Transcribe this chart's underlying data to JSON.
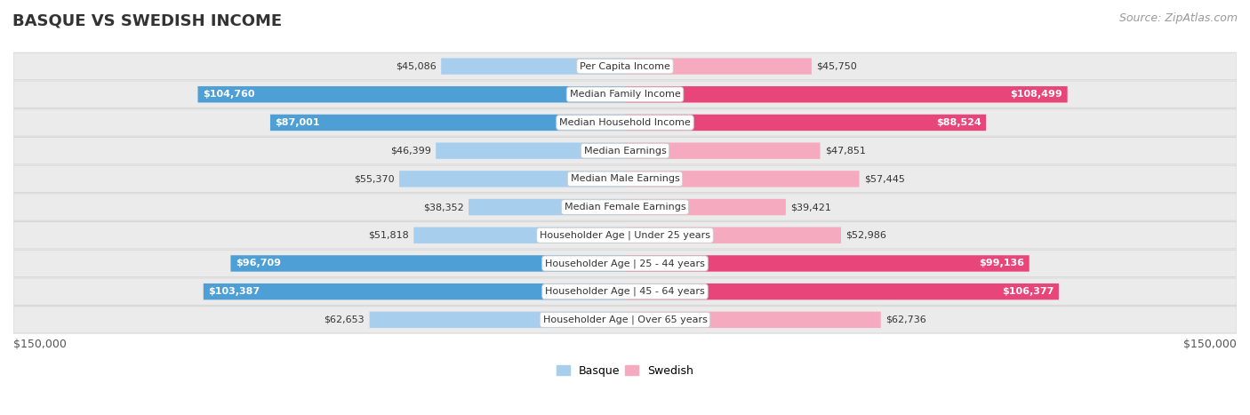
{
  "title": "BASQUE VS SWEDISH INCOME",
  "source": "Source: ZipAtlas.com",
  "categories": [
    "Per Capita Income",
    "Median Family Income",
    "Median Household Income",
    "Median Earnings",
    "Median Male Earnings",
    "Median Female Earnings",
    "Householder Age | Under 25 years",
    "Householder Age | 25 - 44 years",
    "Householder Age | 45 - 64 years",
    "Householder Age | Over 65 years"
  ],
  "basque_values": [
    45086,
    104760,
    87001,
    46399,
    55370,
    38352,
    51818,
    96709,
    103387,
    62653
  ],
  "swedish_values": [
    45750,
    108499,
    88524,
    47851,
    57445,
    39421,
    52986,
    99136,
    106377,
    62736
  ],
  "basque_labels": [
    "$45,086",
    "$104,760",
    "$87,001",
    "$46,399",
    "$55,370",
    "$38,352",
    "$51,818",
    "$96,709",
    "$103,387",
    "$62,653"
  ],
  "swedish_labels": [
    "$45,750",
    "$108,499",
    "$88,524",
    "$47,851",
    "$57,445",
    "$39,421",
    "$52,986",
    "$99,136",
    "$106,377",
    "$62,736"
  ],
  "basque_light_color": "#A8CEEE",
  "basque_dark_color": "#4D9FD6",
  "swedish_light_color": "#F5AABF",
  "swedish_dark_color": "#E8457A",
  "row_bg_color": "#EBEBEB",
  "row_border_color": "#D8D8D8",
  "max_value": 150000,
  "bar_height": 0.58,
  "inside_label_threshold": 80000,
  "legend_basque": "Basque",
  "legend_swedish": "Swedish",
  "xlabel_left": "$150,000",
  "xlabel_right": "$150,000",
  "title_fontsize": 13,
  "source_fontsize": 9,
  "label_fontsize": 8,
  "cat_fontsize": 8
}
